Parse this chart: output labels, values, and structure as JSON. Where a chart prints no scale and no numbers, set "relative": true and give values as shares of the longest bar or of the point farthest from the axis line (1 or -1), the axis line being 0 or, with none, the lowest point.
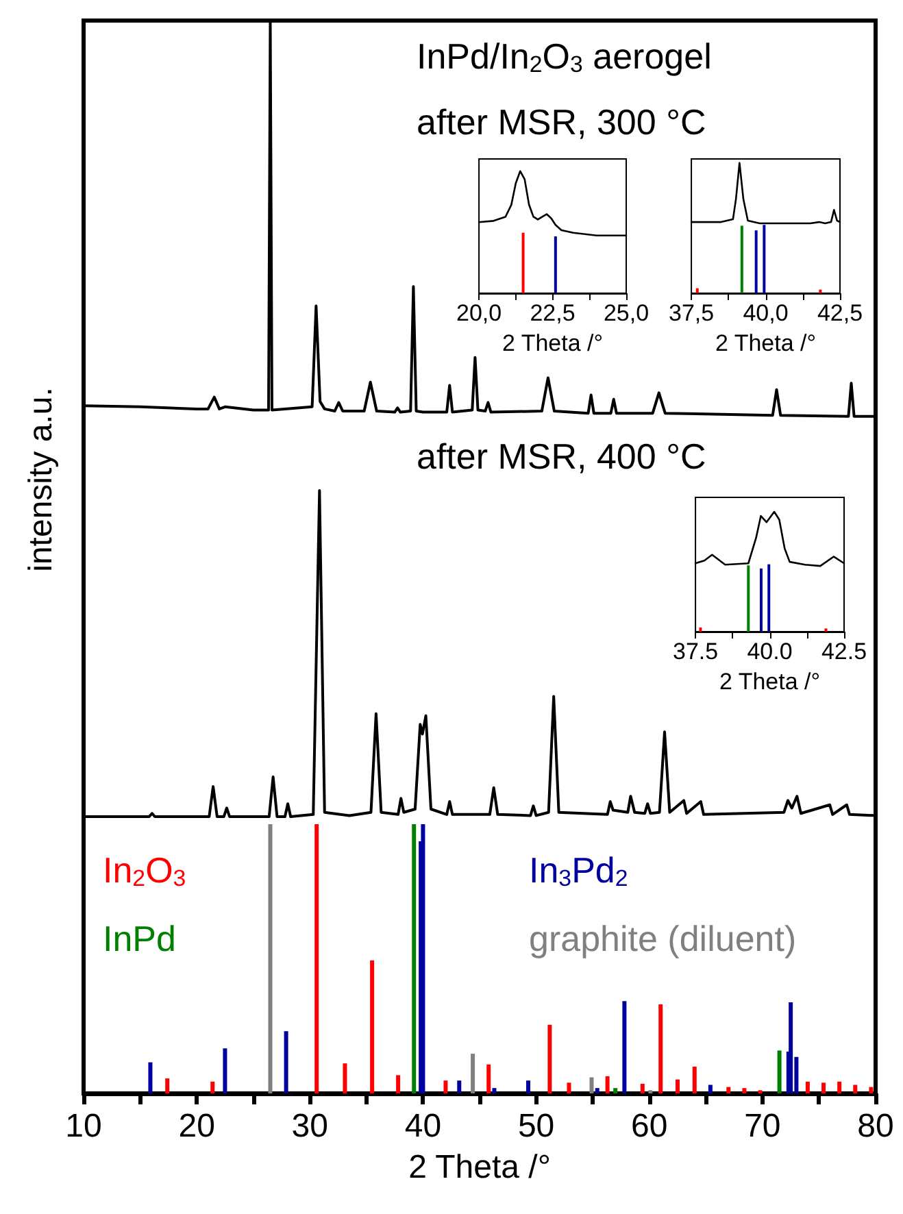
{
  "chart_data": [
    {
      "type": "line",
      "xlabel": "2 Theta /°",
      "ylabel": "intensity a.u.",
      "annotations": [
        "InPd/In$_{2}$O$_{3}$ aerogel",
        "after MSR, 300 °C",
        "after MSR, 400 °C"
      ],
      "relative": true,
      "tick_labels": "x",
      "marker": "none",
      "xlim": [
        10,
        80
      ],
      "xticks": [
        10,
        {
          "value": 15,
          "label": null
        },
        20,
        {
          "value": 25,
          "label": null
        },
        30,
        {
          "value": 35,
          "label": null
        },
        40,
        {
          "value": 45,
          "label": null
        },
        50,
        {
          "value": 55,
          "label": null
        },
        60,
        {
          "value": 65,
          "label": null
        },
        70,
        {
          "value": 75,
          "label": null
        },
        80
      ],
      "series": [
        {
          "color": "#000000",
          "x": [
            10,
            15,
            20,
            21.0,
            21.55,
            22.0,
            22.5,
            25,
            26.35,
            26.5,
            26.65,
            30.2,
            30.55,
            30.9,
            31.3,
            32.2,
            32.55,
            32.9,
            34.8,
            35.35,
            35.9,
            37.5,
            37.75,
            38.0,
            38.9,
            39.15,
            39.4,
            40,
            42.1,
            42.35,
            42.6,
            44.35,
            44.6,
            44.85,
            45.5,
            45.75,
            46.0,
            50.5,
            51.05,
            51.6,
            54.6,
            54.85,
            55.1,
            56.6,
            56.85,
            57.1,
            60.3,
            60.85,
            61.4,
            70.9,
            71.25,
            71.6,
            77.6,
            77.85,
            78.1,
            80
          ],
          "values": [
            0.641,
            0.64,
            0.638,
            0.638,
            0.649,
            0.638,
            0.64,
            0.637,
            0.637,
            1.0,
            0.637,
            0.64,
            0.734,
            0.645,
            0.638,
            0.636,
            0.644,
            0.636,
            0.636,
            0.663,
            0.636,
            0.635,
            0.639,
            0.635,
            0.636,
            0.752,
            0.636,
            0.635,
            0.635,
            0.66,
            0.635,
            0.637,
            0.686,
            0.637,
            0.636,
            0.644,
            0.635,
            0.636,
            0.667,
            0.636,
            0.634,
            0.651,
            0.634,
            0.634,
            0.647,
            0.634,
            0.634,
            0.653,
            0.634,
            0.632,
            0.656,
            0.632,
            0.631,
            0.662,
            0.631,
            0.631
          ]
        },
        {
          "color": "#000000",
          "x": [
            10,
            15.8,
            16.05,
            16.3,
            21.1,
            21.45,
            21.8,
            22.4,
            22.65,
            22.9,
            26.4,
            26.75,
            27.1,
            27.8,
            28.05,
            28.3,
            30.3,
            30.85,
            31.3,
            33.5,
            35.4,
            35.85,
            36.3,
            37.8,
            38.05,
            38.3,
            39.3,
            39.75,
            39.95,
            40.25,
            40.7,
            42.1,
            42.35,
            42.6,
            45.9,
            46.25,
            46.6,
            49.5,
            49.75,
            50.0,
            51.1,
            51.55,
            52.0,
            56.3,
            56.55,
            56.8,
            58.1,
            58.35,
            58.7,
            59.6,
            59.85,
            60.1,
            60.9,
            61.35,
            61.8,
            63.05,
            63.3,
            64.55,
            64.8,
            71.9,
            72.25,
            72.6,
            73.05,
            73.4,
            75.95,
            76.2,
            77.45,
            77.7,
            80
          ],
          "values": [
            0.258,
            0.258,
            0.261,
            0.258,
            0.258,
            0.286,
            0.258,
            0.258,
            0.266,
            0.258,
            0.258,
            0.295,
            0.258,
            0.258,
            0.27,
            0.258,
            0.26,
            0.562,
            0.262,
            0.259,
            0.262,
            0.354,
            0.262,
            0.26,
            0.275,
            0.262,
            0.265,
            0.344,
            0.335,
            0.352,
            0.265,
            0.26,
            0.272,
            0.26,
            0.26,
            0.285,
            0.26,
            0.259,
            0.268,
            0.259,
            0.262,
            0.37,
            0.262,
            0.26,
            0.272,
            0.264,
            0.262,
            0.277,
            0.262,
            0.261,
            0.27,
            0.261,
            0.262,
            0.337,
            0.262,
            0.273,
            0.261,
            0.272,
            0.26,
            0.262,
            0.273,
            0.266,
            0.277,
            0.261,
            0.269,
            0.26,
            0.269,
            0.26,
            0.259
          ]
        },
        {
          "type": "bar",
          "name": "In$_{2}$O$_{3}$",
          "color": "#ff0000",
          "x": [
            17.4,
            21.4,
            30.6,
            33.1,
            35.5,
            37.8,
            42.0,
            45.8,
            51.2,
            52.9,
            56.3,
            59.4,
            61.0,
            62.5,
            64.0,
            67.0,
            68.4,
            69.8,
            74.0,
            75.4,
            76.8,
            78.2,
            79.6
          ],
          "values": [
            0.014,
            0.011,
            0.251,
            0.028,
            0.124,
            0.017,
            0.012,
            0.027,
            0.064,
            0.01,
            0.016,
            0.009,
            0.083,
            0.013,
            0.025,
            0.006,
            0.005,
            0.003,
            0.011,
            0.01,
            0.011,
            0.008,
            0.006
          ]
        },
        {
          "type": "bar",
          "name": "InPd",
          "color": "#008000",
          "x": [
            39.2,
            57.0,
            71.5
          ],
          "values": [
            0.251,
            0.005,
            0.04
          ]
        },
        {
          "type": "bar",
          "name": "In$_{3}$Pd$_{2}$",
          "color": "#0000a0",
          "x": [
            15.9,
            22.5,
            27.9,
            39.8,
            40.0,
            43.2,
            46.3,
            49.3,
            55.4,
            57.8,
            65.4,
            72.3,
            72.5,
            73.0
          ],
          "values": [
            0.029,
            0.042,
            0.058,
            0.235,
            0.251,
            0.012,
            0.005,
            0.012,
            0.005,
            0.086,
            0.008,
            0.039,
            0.085,
            0.034
          ]
        },
        {
          "type": "bar",
          "name": "graphite (diluent)",
          "color": "#808080",
          "x": [
            26.5,
            44.4,
            54.9,
            60.1
          ],
          "values": [
            0.251,
            0.037,
            0.015,
            0.003
          ]
        }
      ]
    },
    {
      "type": "line",
      "xlabel": "2 Theta /°",
      "relative": true,
      "tick_labels": "x",
      "marker": "none",
      "xlim": [
        20,
        25
      ],
      "xticks": [
        {
          "value": 20,
          "label": "20,0"
        },
        {
          "value": 21.25,
          "label": null
        },
        {
          "value": 22.5,
          "label": "22,5"
        },
        {
          "value": 23.75,
          "label": null
        },
        {
          "value": 25,
          "label": "25,0"
        }
      ],
      "series": [
        {
          "color": "#000000",
          "x": [
            20,
            20.5,
            20.9,
            21.1,
            21.25,
            21.4,
            21.55,
            21.7,
            21.85,
            22.0,
            22.15,
            22.3,
            22.45,
            22.6,
            22.8,
            23.2,
            24,
            25
          ],
          "values": [
            0.582,
            0.593,
            0.626,
            0.725,
            0.901,
            1,
            0.934,
            0.725,
            0.626,
            0.604,
            0.626,
            0.648,
            0.615,
            0.56,
            0.516,
            0.495,
            0.473,
            0.473
          ]
        },
        {
          "type": "bar",
          "color": "#ff0000",
          "x": [
            21.5
          ],
          "values": [
            0.496
          ]
        },
        {
          "type": "bar",
          "color": "#0000a0",
          "x": [
            22.6
          ],
          "values": [
            0.466
          ]
        }
      ]
    },
    {
      "type": "line",
      "xlabel": "2 Theta /°",
      "relative": true,
      "tick_labels": "x",
      "marker": "none",
      "xlim": [
        37.5,
        42.5
      ],
      "xticks": [
        {
          "value": 37.5,
          "label": "37,5"
        },
        {
          "value": 38.75,
          "label": null
        },
        {
          "value": 40,
          "label": "40,0"
        },
        {
          "value": 41.25,
          "label": null
        },
        {
          "value": 42.5,
          "label": "42,5"
        }
      ],
      "series": [
        {
          "color": "#000000",
          "x": [
            37.5,
            38.5,
            38.9,
            39.0,
            39.12,
            39.25,
            39.4,
            39.8,
            40.5,
            41.5,
            41.8,
            42.0,
            42.2,
            42.3,
            42.4,
            42.5
          ],
          "values": [
            0.546,
            0.546,
            0.567,
            0.722,
            1,
            0.722,
            0.557,
            0.536,
            0.536,
            0.536,
            0.546,
            0.536,
            0.546,
            0.639,
            0.557,
            0.546
          ]
        },
        {
          "type": "bar",
          "color": "#ff0000",
          "x": [
            37.7,
            41.84
          ],
          "values": [
            0.038,
            0.028
          ]
        },
        {
          "type": "bar",
          "color": "#008000",
          "x": [
            39.2
          ],
          "values": [
            0.518
          ]
        },
        {
          "type": "bar",
          "color": "#0000a0",
          "x": [
            39.68,
            39.95
          ],
          "values": [
            0.482,
            0.524
          ]
        }
      ]
    },
    {
      "type": "line",
      "xlabel": "2 Theta /°",
      "relative": true,
      "tick_labels": "x",
      "marker": "none",
      "xlim": [
        37.5,
        42.5
      ],
      "xticks": [
        37.5,
        {
          "value": 38.75,
          "label": null
        },
        {
          "value": 40,
          "label": "40.0"
        },
        {
          "value": 41.25,
          "label": null
        },
        42.5
      ],
      "series": [
        {
          "color": "#000000",
          "x": [
            37.5,
            37.8,
            38.06,
            38.5,
            39.28,
            39.54,
            39.7,
            39.89,
            40.15,
            40.32,
            40.5,
            40.67,
            41.19,
            41.7,
            42.15,
            42.5
          ],
          "values": [
            0.57,
            0.593,
            0.641,
            0.559,
            0.57,
            0.783,
            0.965,
            0.913,
            1,
            0.934,
            0.694,
            0.582,
            0.559,
            0.548,
            0.626,
            0.57
          ]
        },
        {
          "type": "bar",
          "color": "#ff0000",
          "x": [
            37.67,
            41.89
          ],
          "values": [
            0.035,
            0.027
          ]
        },
        {
          "type": "bar",
          "color": "#008000",
          "x": [
            39.28
          ],
          "values": [
            0.553
          ]
        },
        {
          "type": "bar",
          "color": "#0000a0",
          "x": [
            39.71,
            39.97
          ],
          "values": [
            0.527,
            0.562
          ]
        }
      ]
    }
  ]
}
